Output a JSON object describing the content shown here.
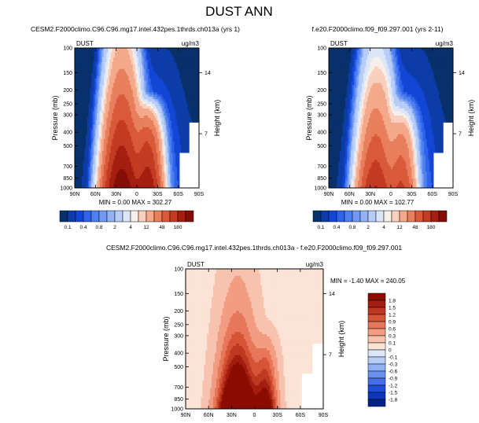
{
  "title": "DUST ANN",
  "chart_data": [
    {
      "type": "heatmap",
      "title": "CESM2.F2000climo.C96.C96.mg17.intel.432pes.1thrds.ch013a (yrs 1)",
      "var_label": "DUST",
      "unit_label": "ug/m3",
      "ylabel": "Pressure (mb)",
      "y2label": "Height (km)",
      "x_ticks": [
        "90N",
        "60N",
        "30N",
        "0",
        "30S",
        "60S",
        "90S"
      ],
      "y_ticks": [
        "100",
        "150",
        "200",
        "250",
        "300",
        "400",
        "500",
        "700",
        "850",
        "1000"
      ],
      "y2_ticks": [
        "14",
        "7"
      ],
      "stats": "MIN =   0.00  MAX = 302.27",
      "colorbar": {
        "orientation": "horizontal",
        "labels": [
          "0.1",
          "0.4",
          "0.8",
          "2",
          "4",
          "12",
          "48",
          "180"
        ]
      },
      "peak_latitude": "~20N",
      "max_value": 302.27
    },
    {
      "type": "heatmap",
      "title": "f.e20.F2000climo.f09_f09.297.001 (yrs 2-11)",
      "var_label": "DUST",
      "unit_label": "ug/m3",
      "ylabel": "Pressure (mb)",
      "y2label": "Height (km)",
      "x_ticks": [
        "90N",
        "60N",
        "30N",
        "0",
        "30S",
        "60S",
        "90S"
      ],
      "y_ticks": [
        "100",
        "150",
        "200",
        "250",
        "300",
        "400",
        "500",
        "700",
        "850",
        "1000"
      ],
      "y2_ticks": [
        "14",
        "7"
      ],
      "stats": "MIN =   0.00  MAX = 102.77",
      "colorbar": {
        "orientation": "horizontal",
        "labels": [
          "0.1",
          "0.4",
          "0.8",
          "2",
          "4",
          "12",
          "48",
          "180"
        ]
      },
      "max_value": 102.77
    },
    {
      "type": "heatmap",
      "title": "CESM2.F2000climo.C96.C96.mg17.intel.432pes.1thrds.ch013a - f.e20.F2000climo.f09_f09.297.001",
      "var_label": "DUST",
      "unit_label": "ug/m3",
      "ylabel": "Pressure (mb)",
      "y2label": "Height (km)",
      "x_ticks": [
        "90N",
        "60N",
        "30N",
        "0",
        "30S",
        "60S",
        "90S"
      ],
      "y_ticks": [
        "100",
        "150",
        "200",
        "250",
        "300",
        "400",
        "500",
        "700",
        "850",
        "1000"
      ],
      "y2_ticks": [
        "14",
        "7"
      ],
      "stats": "MIN = -1.40  MAX = 240.05",
      "colorbar": {
        "orientation": "vertical",
        "labels": [
          "1.8",
          "1.5",
          "1.2",
          "0.9",
          "0.6",
          "0.3",
          "0.1",
          "0",
          "-0.1",
          "-0.3",
          "-0.6",
          "-0.9",
          "-1.2",
          "-1.5",
          "-1.8"
        ]
      },
      "min_value": -1.4,
      "max_value": 240.05
    }
  ],
  "colors": {
    "abs_scale": [
      "#08306b",
      "#0d3ca8",
      "#1446d6",
      "#2f63ea",
      "#4d80f0",
      "#7099f2",
      "#93b2f4",
      "#b7cdf7",
      "#dbe6f9",
      "#f7efe9",
      "#f9cfbe",
      "#f4a98b",
      "#e87f5d",
      "#d95a3b",
      "#c23b22",
      "#a41f10",
      "#840e06"
    ],
    "diff_scale": [
      "#8b0d00",
      "#a31e10",
      "#be3822",
      "#d65536",
      "#e7775a",
      "#f29c82",
      "#f8c3ae",
      "#fbe3d5",
      "#dbe6f9",
      "#b6cdf5",
      "#8fb0f2",
      "#6990ee",
      "#426ee6",
      "#1f4dd9",
      "#0b36b8",
      "#052485"
    ]
  }
}
